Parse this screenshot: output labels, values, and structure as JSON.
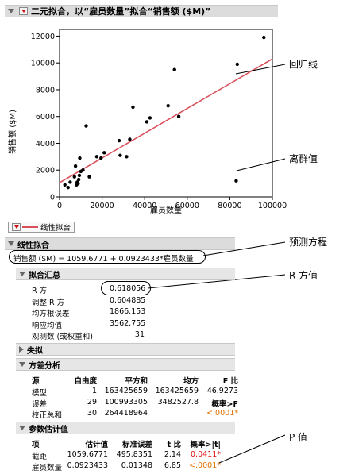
{
  "title": "二元拟合，以“雇员数量”拟合“销售额 ($M)”",
  "chart_data": {
    "type": "scatter",
    "xlabel": "雇员数量",
    "ylabel": "销售额 ($M)",
    "xlim": [
      0,
      100000
    ],
    "ylim": [
      0,
      12500
    ],
    "x_ticks": [
      "0",
      "20000",
      "40000",
      "60000",
      "80000",
      "100000"
    ],
    "y_ticks": [
      "0",
      "2000",
      "4000",
      "6000",
      "8000",
      "10000",
      "12000"
    ],
    "x_tick_values": [
      0,
      20000,
      40000,
      60000,
      80000,
      100000
    ],
    "y_tick_values": [
      0,
      2000,
      4000,
      6000,
      8000,
      10000,
      12000
    ],
    "points": [
      [
        2500,
        900
      ],
      [
        4000,
        700
      ],
      [
        5000,
        1100
      ],
      [
        7000,
        1500
      ],
      [
        7500,
        2300
      ],
      [
        8000,
        900
      ],
      [
        8300,
        1100
      ],
      [
        8700,
        1000
      ],
      [
        9000,
        1300
      ],
      [
        9300,
        1600
      ],
      [
        9500,
        2900
      ],
      [
        10000,
        1900
      ],
      [
        11000,
        2000
      ],
      [
        12500,
        5300
      ],
      [
        14000,
        1500
      ],
      [
        17500,
        3000
      ],
      [
        19500,
        2900
      ],
      [
        21000,
        3300
      ],
      [
        28000,
        4200
      ],
      [
        28500,
        3100
      ],
      [
        31500,
        3000
      ],
      [
        33000,
        4300
      ],
      [
        34500,
        6700
      ],
      [
        41000,
        5600
      ],
      [
        42500,
        5900
      ],
      [
        51000,
        6800
      ],
      [
        54000,
        9500
      ],
      [
        56000,
        6000
      ],
      [
        83000,
        1200
      ],
      [
        83500,
        9900
      ],
      [
        96000,
        11900
      ]
    ],
    "fit": {
      "intercept": 1059.6771,
      "slope": 0.0923433
    }
  },
  "callouts": {
    "regression_line": "回归线",
    "outlier": "离群值",
    "prediction_eq": "预测方程",
    "rsquare": "R 方值",
    "pvalue": "P 值"
  },
  "linear_fit_legend": "线性拟合",
  "linear_fit_header": "线性拟合",
  "equation": "销售额 ($M) = 1059.6771 + 0.0923433*雇员数量",
  "summary": {
    "header": "拟合汇总",
    "rows": [
      {
        "label": "R 方",
        "value": "0.618056"
      },
      {
        "label": "调整 R 方",
        "value": "0.604885"
      },
      {
        "label": "均方根误差",
        "value": "1866.153"
      },
      {
        "label": "响应均值",
        "value": "3562.755"
      },
      {
        "label": "观测数 (或权重和)",
        "value": "31"
      }
    ]
  },
  "lack_of_fit": "失拟",
  "anova": {
    "header": "方差分析",
    "columns": [
      "源",
      "自由度",
      "平方和",
      "均方",
      "F 比"
    ],
    "rows": [
      {
        "source": "模型",
        "df": "1",
        "ss": "163425659",
        "ms": "163425659",
        "f": "46.9273"
      },
      {
        "source": "误差",
        "df": "29",
        "ss": "100993305",
        "ms": "3482527.8",
        "f": "概率>F"
      },
      {
        "source": "校正总和",
        "df": "30",
        "ss": "264418964",
        "ms": "",
        "f": "<.0001*"
      }
    ]
  },
  "params": {
    "header": "参数估计值",
    "columns": [
      "项",
      "估计值",
      "标准误差",
      "t 比",
      "概率>|t|"
    ],
    "rows": [
      {
        "term": "截距",
        "est": "1059.6771",
        "se": "495.8351",
        "t": "2.14",
        "p": "0.0411*"
      },
      {
        "term": "雇员数量",
        "est": "0.0923433",
        "se": "0.01348",
        "t": "6.85",
        "p": "<.0001*"
      }
    ]
  },
  "colors": {
    "fit_line": "#d9505a",
    "point": "#000000",
    "p_red": "#e01010",
    "p_orange": "#e07000"
  }
}
